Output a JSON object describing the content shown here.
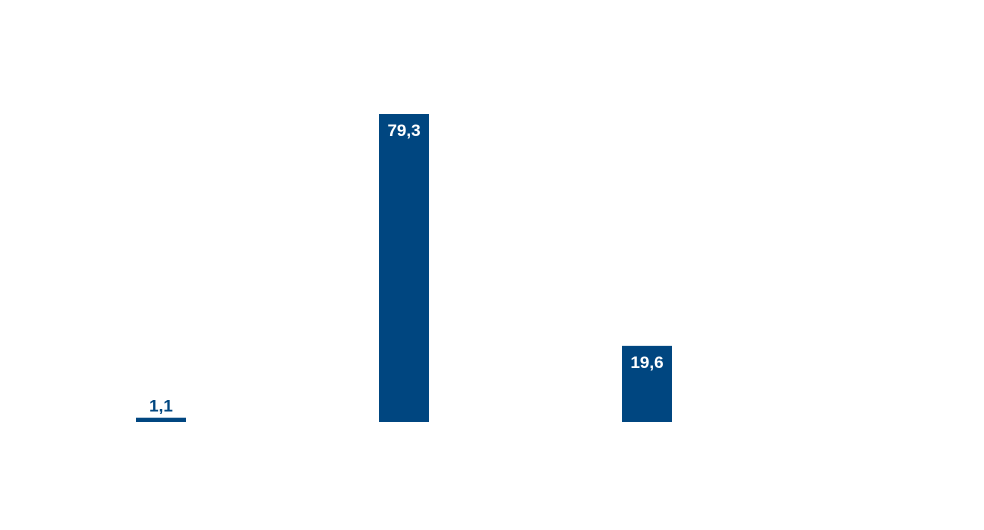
{
  "chart_data": {
    "type": "bar",
    "categories": [
      "",
      "",
      ""
    ],
    "values": [
      1.1,
      79.3,
      19.6
    ],
    "value_labels": [
      "1,1",
      "79,3",
      "19,6"
    ],
    "title": "",
    "xlabel": "",
    "ylabel": "",
    "ylim": [
      0,
      79.3
    ],
    "grid": false,
    "legend": "none",
    "bar_color": "#004680",
    "label_color_inside": "#ffffff",
    "label_color_outside": "#004680"
  }
}
